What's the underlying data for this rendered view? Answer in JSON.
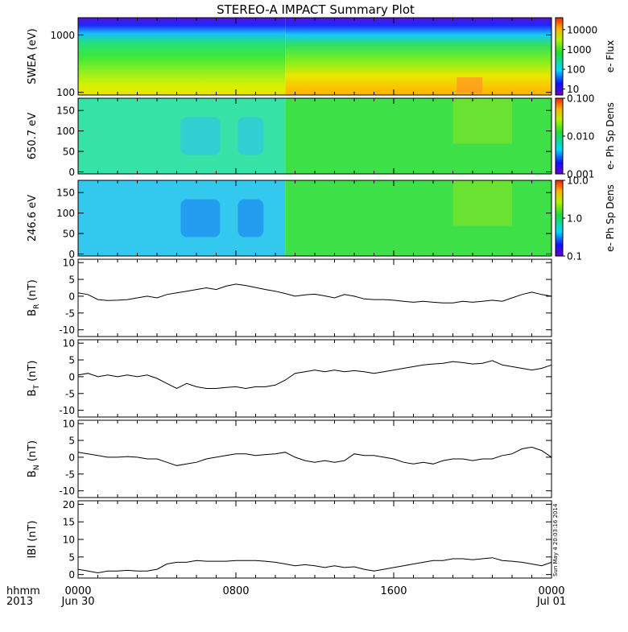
{
  "title": "STEREO-A IMPACT Summary Plot",
  "stamp": "Sun May  4 20:03:16 2014",
  "x_axis": {
    "ticks": [
      {
        "label": "0000",
        "sub": "Jun 30",
        "hour": 0
      },
      {
        "label": "0800",
        "sub": "",
        "hour": 8
      },
      {
        "label": "1600",
        "sub": "",
        "hour": 16
      },
      {
        "label": "0000",
        "sub": "Jul 01",
        "hour": 24
      }
    ],
    "corner_label": "hhmm",
    "corner_sub": "2013",
    "range_hours": [
      0,
      24
    ]
  },
  "panels": [
    {
      "id": "swea",
      "type": "heatmap",
      "ylabel": "SWEA (eV)",
      "yscale": "log",
      "ylim": [
        90,
        2000
      ],
      "yticks": [
        {
          "v": 1000,
          "label": "1000"
        },
        {
          "v": 100,
          "label": "100"
        }
      ],
      "colorbar": {
        "label": "e- Flux",
        "scale": "log",
        "range": [
          5,
          40000
        ],
        "ticks": [
          {
            "v": 10000,
            "label": "10000"
          },
          {
            "v": 1000,
            "label": "1000"
          },
          {
            "v": 100,
            "label": "100"
          },
          {
            "v": 10,
            "label": "10"
          }
        ]
      }
    },
    {
      "id": "pad650",
      "type": "heatmap",
      "ylabel": "650.7 eV",
      "yscale": "linear",
      "ylim": [
        -5,
        180
      ],
      "yticks": [
        {
          "v": 150,
          "label": "150"
        },
        {
          "v": 100,
          "label": "100"
        },
        {
          "v": 50,
          "label": "50"
        },
        {
          "v": 0,
          "label": "0"
        }
      ],
      "colorbar": {
        "label": "e- Ph Sp Dens",
        "scale": "log",
        "range": [
          0.001,
          0.1
        ],
        "ticks": [
          {
            "v": 0.1,
            "label": "0.100"
          },
          {
            "v": 0.01,
            "label": "0.010"
          },
          {
            "v": 0.001,
            "label": "0.001"
          }
        ]
      }
    },
    {
      "id": "pad246",
      "type": "heatmap",
      "ylabel": "246.6 eV",
      "yscale": "linear",
      "ylim": [
        -5,
        180
      ],
      "yticks": [
        {
          "v": 150,
          "label": "150"
        },
        {
          "v": 100,
          "label": "100"
        },
        {
          "v": 50,
          "label": "50"
        },
        {
          "v": 0,
          "label": "0"
        }
      ],
      "colorbar": {
        "label": "e- Ph Sp Dens",
        "scale": "log",
        "range": [
          0.1,
          10
        ],
        "ticks": [
          {
            "v": 10,
            "label": "10.0"
          },
          {
            "v": 1,
            "label": "1.0"
          },
          {
            "v": 0.1,
            "label": "0.1"
          }
        ]
      }
    },
    {
      "id": "br",
      "type": "line",
      "ylabel": "B",
      "ysub": "R",
      "yunit": "(nT)",
      "ylim": [
        -12,
        11
      ],
      "yticks": [
        {
          "v": 10,
          "label": "10"
        },
        {
          "v": 5,
          "label": "5"
        },
        {
          "v": 0,
          "label": "0"
        },
        {
          "v": -5,
          "label": "-5"
        },
        {
          "v": -10,
          "label": "-10"
        }
      ]
    },
    {
      "id": "bt",
      "type": "line",
      "ylabel": "B",
      "ysub": "T",
      "yunit": "(nT)",
      "ylim": [
        -12,
        11
      ],
      "yticks": [
        {
          "v": 10,
          "label": "10"
        },
        {
          "v": 5,
          "label": "5"
        },
        {
          "v": 0,
          "label": "0"
        },
        {
          "v": -5,
          "label": "-5"
        },
        {
          "v": -10,
          "label": "-10"
        }
      ]
    },
    {
      "id": "bn",
      "type": "line",
      "ylabel": "B",
      "ysub": "N",
      "yunit": "(nT)",
      "ylim": [
        -12,
        11
      ],
      "yticks": [
        {
          "v": 10,
          "label": "10"
        },
        {
          "v": 5,
          "label": "5"
        },
        {
          "v": 0,
          "label": "0"
        },
        {
          "v": -5,
          "label": "-5"
        },
        {
          "v": -10,
          "label": "-10"
        }
      ]
    },
    {
      "id": "bmag",
      "type": "line",
      "ylabel": "IBI",
      "ysub": "",
      "yunit": "(nT)",
      "ylim": [
        -1,
        21
      ],
      "yticks": [
        {
          "v": 20,
          "label": "20"
        },
        {
          "v": 15,
          "label": "15"
        },
        {
          "v": 10,
          "label": "10"
        },
        {
          "v": 5,
          "label": "5"
        },
        {
          "v": 0,
          "label": "0"
        }
      ]
    }
  ],
  "chart_data": [
    {
      "type": "line",
      "title": "",
      "ylabel": "B_R (nT)",
      "xlabel": "hhmm",
      "ylim": [
        -12,
        11
      ],
      "x_hours": [
        0,
        0.5,
        1,
        1.5,
        2,
        2.5,
        3,
        3.5,
        4,
        4.5,
        5,
        5.5,
        6,
        6.5,
        7,
        7.5,
        8,
        8.5,
        9,
        9.5,
        10,
        10.5,
        11,
        11.5,
        12,
        12.5,
        13,
        13.5,
        14,
        14.5,
        15,
        15.5,
        16,
        16.5,
        17,
        17.5,
        18,
        18.5,
        19,
        19.5,
        20,
        20.5,
        21,
        21.5,
        22,
        22.5,
        23,
        23.5,
        24
      ],
      "values": [
        1.0,
        0.5,
        -1.0,
        -1.3,
        -1.2,
        -1.0,
        -0.5,
        0.0,
        -0.5,
        0.5,
        1.0,
        1.5,
        2.0,
        2.5,
        2.0,
        3.0,
        3.6,
        3.2,
        2.6,
        2.0,
        1.5,
        0.8,
        0.0,
        0.4,
        0.6,
        0.1,
        -0.5,
        0.5,
        0.0,
        -0.8,
        -1.0,
        -1.0,
        -1.2,
        -1.5,
        -1.8,
        -1.5,
        -1.8,
        -2.0,
        -2.0,
        -1.5,
        -1.8,
        -1.5,
        -1.2,
        -1.5,
        -0.5,
        0.5,
        1.2,
        0.5,
        0.0
      ]
    },
    {
      "type": "line",
      "title": "",
      "ylabel": "B_T (nT)",
      "xlabel": "hhmm",
      "ylim": [
        -12,
        11
      ],
      "x_hours": [
        0,
        0.5,
        1,
        1.5,
        2,
        2.5,
        3,
        3.5,
        4,
        4.5,
        5,
        5.5,
        6,
        6.5,
        7,
        7.5,
        8,
        8.5,
        9,
        9.5,
        10,
        10.5,
        11,
        11.5,
        12,
        12.5,
        13,
        13.5,
        14,
        14.5,
        15,
        15.5,
        16,
        16.5,
        17,
        17.5,
        18,
        18.5,
        19,
        19.5,
        20,
        20.5,
        21,
        21.5,
        22,
        22.5,
        23,
        23.5,
        24
      ],
      "values": [
        0.5,
        1.0,
        0.0,
        0.5,
        0.0,
        0.5,
        0.0,
        0.5,
        -0.5,
        -2.0,
        -3.5,
        -2.0,
        -3.0,
        -3.5,
        -3.5,
        -3.2,
        -3.0,
        -3.5,
        -3.0,
        -3.0,
        -2.5,
        -1.0,
        1.0,
        1.5,
        2.0,
        1.5,
        2.0,
        1.5,
        1.8,
        1.5,
        1.0,
        1.5,
        2.0,
        2.5,
        3.0,
        3.5,
        3.8,
        4.0,
        4.5,
        4.2,
        3.8,
        4.0,
        4.8,
        3.5,
        3.0,
        2.5,
        2.0,
        2.5,
        3.5
      ]
    },
    {
      "type": "line",
      "title": "",
      "ylabel": "B_N (nT)",
      "xlabel": "hhmm",
      "ylim": [
        -12,
        11
      ],
      "x_hours": [
        0,
        0.5,
        1,
        1.5,
        2,
        2.5,
        3,
        3.5,
        4,
        4.5,
        5,
        5.5,
        6,
        6.5,
        7,
        7.5,
        8,
        8.5,
        9,
        9.5,
        10,
        10.5,
        11,
        11.5,
        12,
        12.5,
        13,
        13.5,
        14,
        14.5,
        15,
        15.5,
        16,
        16.5,
        17,
        17.5,
        18,
        18.5,
        19,
        19.5,
        20,
        20.5,
        21,
        21.5,
        22,
        22.5,
        23,
        23.5,
        24
      ],
      "values": [
        1.5,
        1.0,
        0.5,
        0.0,
        0.0,
        0.2,
        0.0,
        -0.5,
        -0.5,
        -1.5,
        -2.5,
        -2.0,
        -1.5,
        -0.5,
        0.0,
        0.5,
        1.0,
        1.0,
        0.5,
        0.8,
        1.0,
        1.5,
        0.0,
        -1.0,
        -1.5,
        -1.0,
        -1.5,
        -1.0,
        1.0,
        0.5,
        0.5,
        0.0,
        -0.5,
        -1.5,
        -2.0,
        -1.5,
        -2.0,
        -1.0,
        -0.5,
        -0.5,
        -1.0,
        -0.5,
        -0.5,
        0.5,
        1.0,
        2.5,
        3.0,
        2.0,
        0.0
      ]
    },
    {
      "type": "line",
      "title": "",
      "ylabel": "IBI (nT)",
      "xlabel": "hhmm",
      "ylim": [
        -1,
        21
      ],
      "x_hours": [
        0,
        0.5,
        1,
        1.5,
        2,
        2.5,
        3,
        3.5,
        4,
        4.5,
        5,
        5.5,
        6,
        6.5,
        7,
        7.5,
        8,
        8.5,
        9,
        9.5,
        10,
        10.5,
        11,
        11.5,
        12,
        12.5,
        13,
        13.5,
        14,
        14.5,
        15,
        15.5,
        16,
        16.5,
        17,
        17.5,
        18,
        18.5,
        19,
        19.5,
        20,
        20.5,
        21,
        21.5,
        22,
        22.5,
        23,
        23.5,
        24
      ],
      "values": [
        1.5,
        1.0,
        0.5,
        1.0,
        1.0,
        1.2,
        1.0,
        1.0,
        1.5,
        3.0,
        3.5,
        3.5,
        4.0,
        3.8,
        3.8,
        3.8,
        4.0,
        4.0,
        4.0,
        3.8,
        3.5,
        3.0,
        2.5,
        2.8,
        2.5,
        2.0,
        2.5,
        2.0,
        2.2,
        1.5,
        1.0,
        1.5,
        2.0,
        2.5,
        3.0,
        3.5,
        4.0,
        4.0,
        4.5,
        4.5,
        4.2,
        4.5,
        4.8,
        4.0,
        3.8,
        3.5,
        3.0,
        2.5,
        3.5
      ]
    },
    {
      "type": "heatmap",
      "title": "",
      "ylabel": "SWEA (eV)",
      "colorbar_label": "e- Flux",
      "note": "electron flux vs energy; flux increases after ~1000 UT",
      "energy_eV": [
        100,
        200,
        500,
        1000,
        1500
      ],
      "time_hours": [
        0,
        4,
        8,
        10.5,
        14,
        18.5,
        20,
        24
      ],
      "flux": [
        [
          1500,
          300,
          80,
          25,
          10
        ],
        [
          1500,
          300,
          80,
          25,
          10
        ],
        [
          1600,
          320,
          85,
          25,
          10
        ],
        [
          5000,
          700,
          150,
          40,
          12
        ],
        [
          4500,
          650,
          140,
          40,
          12
        ],
        [
          9000,
          900,
          170,
          45,
          12
        ],
        [
          6000,
          800,
          160,
          45,
          12
        ],
        [
          3500,
          600,
          130,
          35,
          11
        ]
      ]
    }
  ]
}
